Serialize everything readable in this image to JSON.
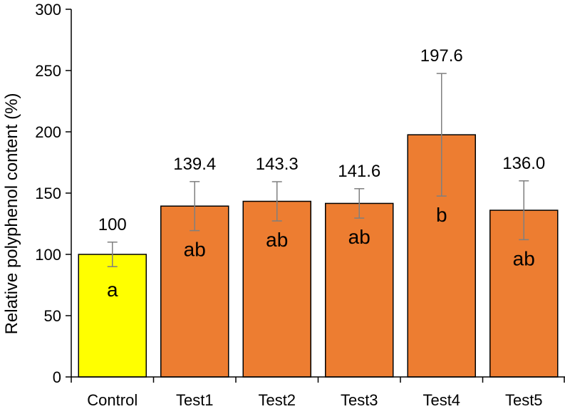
{
  "chart_data": {
    "type": "bar",
    "title": "",
    "xlabel": "",
    "ylabel": "Relative polyphenol content (%)",
    "ylim": [
      0,
      300
    ],
    "yticks": [
      0,
      50,
      100,
      150,
      200,
      250,
      300
    ],
    "categories": [
      "Control",
      "Test1",
      "Test2",
      "Test3",
      "Test4",
      "Test5"
    ],
    "values": [
      100,
      139.4,
      143.3,
      141.6,
      197.6,
      136.0
    ],
    "value_labels": [
      "100",
      "139.4",
      "143.3",
      "141.6",
      "197.6",
      "136.0"
    ],
    "errors": [
      10,
      20,
      16,
      12,
      50,
      24
    ],
    "significance_letters": [
      "a",
      "ab",
      "ab",
      "ab",
      "b",
      "ab"
    ],
    "bar_colors": [
      "#FFFF00",
      "#ED7D31",
      "#ED7D31",
      "#ED7D31",
      "#ED7D31",
      "#ED7D31"
    ],
    "error_bar_color": "#7f7f7f",
    "grid": false,
    "legend": "none"
  }
}
